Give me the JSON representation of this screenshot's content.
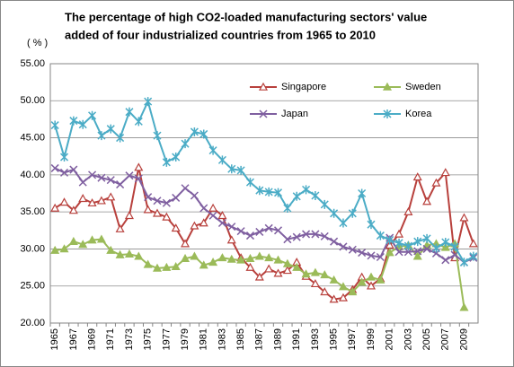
{
  "chart_data": {
    "type": "line",
    "title": [
      "The percentage of high CO2-loaded manufacturing sectors' value",
      "added of four industrialized countries from 1965  to 2010"
    ],
    "ylabel": "( % )",
    "categories": [
      "1965",
      null,
      "1967",
      null,
      "1969",
      null,
      "1971",
      null,
      "1973",
      null,
      "1975",
      null,
      "1977",
      null,
      "1979",
      null,
      "1981",
      null,
      "1983",
      null,
      "1985",
      null,
      "1987",
      null,
      "1989",
      null,
      "1991",
      null,
      "1993",
      null,
      "1995",
      null,
      "1997",
      null,
      "1999",
      null,
      "2001",
      null,
      "2003",
      null,
      "2005",
      null,
      "2007",
      null,
      "2009",
      null
    ],
    "series": [
      {
        "name": "Singapore",
        "color": "#b8403c",
        "marker": "triangle-open",
        "values": [
          35.5,
          36.3,
          35.2,
          36.8,
          36.2,
          36.5,
          37,
          32.7,
          34.5,
          41,
          35.3,
          34.8,
          34.3,
          32.8,
          30.7,
          33.1,
          33.5,
          35.5,
          34.5,
          31.2,
          28.8,
          27.5,
          26.2,
          27.3,
          26.7,
          27.1,
          28.2,
          26.3,
          25.3,
          24.2,
          23.2,
          23.4,
          24.5,
          26.2,
          25,
          26,
          30.5,
          32,
          35,
          39.7,
          36.4,
          38.9,
          40.3,
          28.8,
          34.2,
          30.7
        ]
      },
      {
        "name": "Sweden",
        "color": "#9bbb59",
        "marker": "triangle",
        "values": [
          29.8,
          30,
          31,
          30.6,
          31.2,
          31.3,
          29.8,
          29.2,
          29.3,
          29,
          27.9,
          27.4,
          27.5,
          27.6,
          28.7,
          29,
          27.8,
          28.2,
          28.8,
          28.6,
          28.5,
          28.7,
          29,
          28.8,
          28.5,
          28,
          27.5,
          26.6,
          26.8,
          26.5,
          25.8,
          24.9,
          24.2,
          25.5,
          26.2,
          25.8,
          29.5,
          30.3,
          30.5,
          29,
          30.5,
          30.7,
          30.2,
          30.7,
          22.1,
          null
        ]
      },
      {
        "name": "Japan",
        "color": "#7f5fa0",
        "marker": "x",
        "values": [
          40.9,
          40.3,
          40.7,
          39,
          40,
          39.6,
          39.3,
          38.7,
          39.9,
          39.5,
          37,
          36.5,
          36.2,
          36.9,
          38.2,
          37.2,
          35.5,
          34.5,
          33.5,
          33,
          32.4,
          31.8,
          32.3,
          32.8,
          32.5,
          31.3,
          31.6,
          32,
          32,
          31.7,
          31,
          30.3,
          29.9,
          29.5,
          29.1,
          28.9,
          31.5,
          29.6,
          29.6,
          29.7,
          30,
          29.4,
          28.5,
          29.2,
          28.2,
          28.8
        ]
      },
      {
        "name": "Korea",
        "color": "#4bacc6",
        "marker": "star",
        "values": [
          46.7,
          42.4,
          47.3,
          46.8,
          48,
          45.3,
          46.2,
          45,
          48.5,
          47.2,
          49.9,
          45.3,
          41.7,
          42.4,
          44.2,
          45.8,
          45.5,
          43.3,
          42,
          40.8,
          40.6,
          39,
          37.9,
          37.7,
          37.6,
          35.5,
          37.1,
          38,
          37.2,
          36,
          34.8,
          33.5,
          34.8,
          37.5,
          33.3,
          31.8,
          31.2,
          30.8,
          30.4,
          31,
          31.4,
          30.1,
          30.9,
          30.3,
          28.2,
          29
        ]
      }
    ],
    "ylim": [
      20,
      55
    ],
    "yticks": [
      {
        "value": 20,
        "label": "20.00"
      },
      {
        "value": 25,
        "label": "25.00"
      },
      {
        "value": 30,
        "label": "30.00"
      },
      {
        "value": 35,
        "label": "35.00"
      },
      {
        "value": 40,
        "label": "40.00"
      },
      {
        "value": 45,
        "label": "45.00"
      },
      {
        "value": 50,
        "label": "50.00"
      },
      {
        "value": 55,
        "label": "55.00"
      }
    ],
    "grid": true
  }
}
